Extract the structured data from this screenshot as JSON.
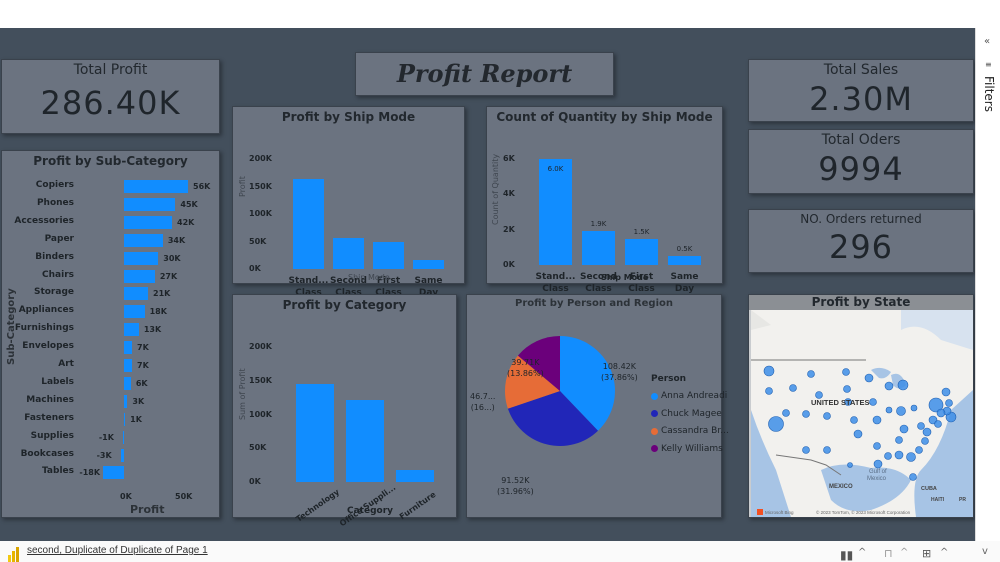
{
  "report": {
    "title": "Profit Report"
  },
  "kpis": {
    "total_profit": {
      "label": "Total Profit",
      "value": "286.40K"
    },
    "total_sales": {
      "label": "Total Sales",
      "value": "2.30M"
    },
    "total_orders": {
      "label": "Total Oders",
      "value": "9994"
    },
    "orders_returned": {
      "label": "NO. Orders returned",
      "value": "296"
    }
  },
  "filters_pane": {
    "label": "Filters",
    "collapse_icon": "double-chevron-left"
  },
  "footer": {
    "page_link": "second, Duplicate of Duplicate of Page 1"
  },
  "chart_data": [
    {
      "id": "profit_by_subcategory",
      "type": "bar",
      "orientation": "horizontal",
      "title": "Profit by Sub-Category",
      "xlabel": "Profit",
      "ylabel": "Sub-Category",
      "xticks": [
        "0K",
        "50K"
      ],
      "categories": [
        "Copiers",
        "Phones",
        "Accessories",
        "Paper",
        "Binders",
        "Chairs",
        "Storage",
        "Appliances",
        "Furnishings",
        "Envelopes",
        "Art",
        "Labels",
        "Machines",
        "Fasteners",
        "Supplies",
        "Bookcases",
        "Tables"
      ],
      "values": [
        56,
        45,
        42,
        34,
        30,
        27,
        21,
        18,
        13,
        7,
        7,
        6,
        3,
        1,
        -1,
        -3,
        -18
      ],
      "value_labels": [
        "56K",
        "45K",
        "42K",
        "34K",
        "30K",
        "27K",
        "21K",
        "18K",
        "13K",
        "7K",
        "7K",
        "6K",
        "3K",
        "1K",
        "-1K",
        "-3K",
        "-18K"
      ],
      "unit": "K"
    },
    {
      "id": "profit_by_ship_mode",
      "type": "bar",
      "title": "Profit by Ship Mode",
      "xlabel": "Ship Mode",
      "ylabel": "Profit",
      "yticks": [
        "200K",
        "150K",
        "100K",
        "50K",
        "0K"
      ],
      "ylim": [
        0,
        200
      ],
      "categories": [
        "Stand... Class",
        "Second Class",
        "First Class",
        "Same Day"
      ],
      "cat_lines": [
        [
          "Stand...",
          "Class"
        ],
        [
          "Second",
          "Class"
        ],
        [
          "First",
          "Class"
        ],
        [
          "Same",
          "Day"
        ]
      ],
      "values": [
        164,
        57,
        49,
        16
      ],
      "unit": "K"
    },
    {
      "id": "count_quantity_by_ship_mode",
      "type": "bar",
      "title": "Count of Quantity by Ship Mode",
      "xlabel": "Ship Mode",
      "ylabel": "Count of Quantity",
      "yticks": [
        "6K",
        "4K",
        "2K",
        "0K"
      ],
      "ylim": [
        0,
        6
      ],
      "categories": [
        "Stand... Class",
        "Second Class",
        "First Class",
        "Same Day"
      ],
      "cat_lines": [
        [
          "Stand...",
          "Class"
        ],
        [
          "Second",
          "Class"
        ],
        [
          "First",
          "Class"
        ],
        [
          "Same",
          "Day"
        ]
      ],
      "values": [
        6.0,
        1.9,
        1.5,
        0.5
      ],
      "value_labels": [
        "6.0K",
        "1.9K",
        "1.5K",
        "0.5K"
      ],
      "unit": "K"
    },
    {
      "id": "profit_by_category",
      "type": "bar",
      "title": "Profit by Category",
      "xlabel": "Category",
      "ylabel": "Sum of Profit",
      "yticks": [
        "200K",
        "150K",
        "100K",
        "50K",
        "0K"
      ],
      "ylim": [
        0,
        200
      ],
      "categories": [
        "Technology",
        "Office Suppli...",
        "Furniture"
      ],
      "values": [
        145,
        122,
        18
      ],
      "unit": "K"
    },
    {
      "id": "profit_by_person_region",
      "type": "pie",
      "title": "Profit by Person and Region",
      "legend_title": "Person",
      "legend_position": "right",
      "slices": [
        {
          "name": "Anna Andreadi",
          "value": 108.42,
          "label": "108.42K",
          "pct": "(37.86%)",
          "color": "#118dff"
        },
        {
          "name": "Chuck Magee",
          "value": 91.52,
          "label": "91.52K",
          "pct": "(31.96%)",
          "color": "#2126b8"
        },
        {
          "name": "Cassandra Br...",
          "value": 46.75,
          "label": "46.7...",
          "pct": "(16...)",
          "color": "#e66c37"
        },
        {
          "name": "Kelly Williams",
          "value": 39.71,
          "label": "39.71K",
          "pct": "(13.86%)",
          "color": "#6b007b"
        }
      ]
    },
    {
      "id": "profit_by_state",
      "type": "map",
      "title": "Profit by State",
      "map_labels": [
        "UNITED STATES",
        "Gulf of Mexico",
        "MEXICO",
        "CUBA",
        "HAITI",
        "PR (U.S.)"
      ],
      "attribution": "© 2023 TomTom, © 2023 Microsoft Corporation",
      "provider": "Microsoft Bing"
    }
  ]
}
